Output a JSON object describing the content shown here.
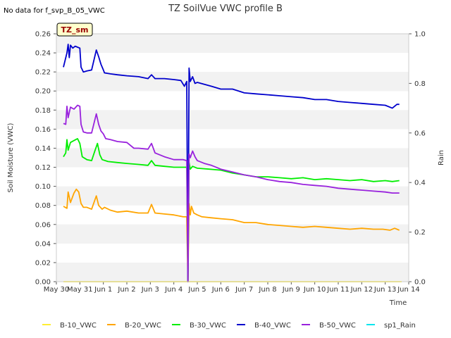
{
  "chart_data": {
    "type": "line",
    "title": "TZ SoilVue VWC profile B",
    "note": "No data for f_svp_B_05_VWC",
    "badge": "TZ_sm",
    "xlabel": "Time",
    "ylabel": "Soil Moisture (VWC)",
    "y2label": "Rain",
    "xlim": [
      0,
      15
    ],
    "ylim": [
      0,
      0.26
    ],
    "y2lim": [
      0,
      1.0
    ],
    "x_ticks": [
      {
        "x": 0,
        "label": "May 30"
      },
      {
        "x": 1,
        "label": "May 31"
      },
      {
        "x": 2,
        "label": "Jun 1"
      },
      {
        "x": 3,
        "label": "Jun 2"
      },
      {
        "x": 4,
        "label": "Jun 3"
      },
      {
        "x": 5,
        "label": "Jun 4"
      },
      {
        "x": 6,
        "label": "Jun 5"
      },
      {
        "x": 7,
        "label": "Jun 6"
      },
      {
        "x": 8,
        "label": "Jun 7"
      },
      {
        "x": 9,
        "label": "Jun 8"
      },
      {
        "x": 10,
        "label": "Jun 9"
      },
      {
        "x": 11,
        "label": "Jun 10"
      },
      {
        "x": 12,
        "label": "Jun 11"
      },
      {
        "x": 13,
        "label": "Jun 12"
      },
      {
        "x": 14,
        "label": "Jun 13"
      },
      {
        "x": 15,
        "label": "Jun 14"
      }
    ],
    "y_ticks": [
      "0.00",
      "0.02",
      "0.04",
      "0.06",
      "0.08",
      "0.10",
      "0.12",
      "0.14",
      "0.16",
      "0.18",
      "0.20",
      "0.22",
      "0.24",
      "0.26"
    ],
    "y2_ticks": [
      "0.0",
      "0.2",
      "0.4",
      "0.6",
      "0.8",
      "1.0"
    ],
    "grid": "horizontal bands",
    "legend_position": "bottom",
    "series": [
      {
        "name": "B-10_VWC",
        "color": "#ffee33",
        "x": [
          0.3,
          14.7
        ],
        "y": [
          0.0,
          0.0
        ]
      },
      {
        "name": "B-20_VWC",
        "color": "#ffa500",
        "x": [
          0.3,
          0.45,
          0.5,
          0.6,
          0.75,
          0.85,
          0.95,
          1.05,
          1.15,
          1.3,
          1.5,
          1.7,
          1.8,
          1.95,
          2.05,
          2.3,
          2.6,
          3.0,
          3.5,
          3.9,
          4.05,
          4.2,
          4.6,
          5.0,
          5.4,
          5.55,
          5.6,
          5.65,
          5.7,
          5.75,
          5.85,
          6.0,
          6.2,
          6.6,
          7.0,
          7.5,
          8.0,
          8.5,
          9.0,
          9.5,
          10.0,
          10.5,
          11.0,
          11.5,
          12.0,
          12.5,
          13.0,
          13.5,
          13.9,
          14.2,
          14.4,
          14.5,
          14.6
        ],
        "y": [
          0.079,
          0.077,
          0.094,
          0.083,
          0.093,
          0.097,
          0.094,
          0.082,
          0.078,
          0.078,
          0.076,
          0.09,
          0.08,
          0.076,
          0.078,
          0.075,
          0.073,
          0.074,
          0.072,
          0.072,
          0.081,
          0.072,
          0.071,
          0.07,
          0.068,
          0.068,
          0.0,
          0.082,
          0.07,
          0.079,
          0.072,
          0.07,
          0.068,
          0.067,
          0.066,
          0.065,
          0.062,
          0.062,
          0.06,
          0.059,
          0.058,
          0.057,
          0.058,
          0.057,
          0.056,
          0.055,
          0.056,
          0.055,
          0.055,
          0.054,
          0.056,
          0.055,
          0.054
        ]
      },
      {
        "name": "B-30_VWC",
        "color": "#00ee00",
        "x": [
          0.3,
          0.4,
          0.45,
          0.5,
          0.6,
          0.75,
          0.9,
          1.0,
          1.1,
          1.3,
          1.5,
          1.65,
          1.75,
          1.85,
          1.95,
          2.2,
          2.6,
          3.0,
          3.5,
          3.9,
          4.05,
          4.2,
          4.6,
          5.0,
          5.4,
          5.55,
          5.6,
          5.65,
          5.7,
          5.8,
          6.0,
          6.5,
          7.0,
          7.5,
          8.0,
          8.5,
          9.0,
          9.5,
          10.0,
          10.5,
          11.0,
          11.5,
          12.0,
          12.5,
          13.0,
          13.5,
          14.0,
          14.3,
          14.6
        ],
        "y": [
          0.131,
          0.135,
          0.149,
          0.138,
          0.146,
          0.148,
          0.15,
          0.145,
          0.131,
          0.128,
          0.127,
          0.138,
          0.145,
          0.133,
          0.128,
          0.126,
          0.125,
          0.124,
          0.123,
          0.122,
          0.127,
          0.122,
          0.121,
          0.12,
          0.12,
          0.12,
          0.0,
          0.125,
          0.118,
          0.121,
          0.119,
          0.118,
          0.117,
          0.114,
          0.112,
          0.11,
          0.11,
          0.109,
          0.108,
          0.109,
          0.107,
          0.108,
          0.107,
          0.106,
          0.107,
          0.105,
          0.106,
          0.105,
          0.106
        ]
      },
      {
        "name": "B-40_VWC",
        "color": "#0000cc",
        "x": [
          0.3,
          0.45,
          0.5,
          0.55,
          0.6,
          0.7,
          0.8,
          0.9,
          1.0,
          1.05,
          1.15,
          1.3,
          1.5,
          1.7,
          1.8,
          1.9,
          2.0,
          2.05,
          2.3,
          2.6,
          3.0,
          3.5,
          3.9,
          4.05,
          4.2,
          4.6,
          5.0,
          5.3,
          5.45,
          5.55,
          5.6,
          5.65,
          5.7,
          5.8,
          5.9,
          6.0,
          6.3,
          6.6,
          7.0,
          7.5,
          8.0,
          8.5,
          9.0,
          9.5,
          10.0,
          10.5,
          11.0,
          11.5,
          12.0,
          12.5,
          13.0,
          13.5,
          14.0,
          14.3,
          14.5,
          14.6
        ],
        "y": [
          0.225,
          0.24,
          0.249,
          0.235,
          0.248,
          0.245,
          0.247,
          0.246,
          0.245,
          0.225,
          0.22,
          0.221,
          0.222,
          0.243,
          0.236,
          0.228,
          0.222,
          0.219,
          0.218,
          0.217,
          0.216,
          0.215,
          0.213,
          0.217,
          0.213,
          0.213,
          0.212,
          0.211,
          0.205,
          0.21,
          0.0,
          0.224,
          0.21,
          0.215,
          0.208,
          0.209,
          0.207,
          0.205,
          0.202,
          0.202,
          0.198,
          0.197,
          0.196,
          0.195,
          0.194,
          0.193,
          0.191,
          0.191,
          0.189,
          0.188,
          0.187,
          0.186,
          0.185,
          0.182,
          0.186,
          0.186
        ]
      },
      {
        "name": "B-50_VWC",
        "color": "#9922dd",
        "x": [
          0.3,
          0.4,
          0.45,
          0.5,
          0.6,
          0.75,
          0.9,
          1.0,
          1.05,
          1.15,
          1.3,
          1.5,
          1.7,
          1.8,
          1.9,
          2.0,
          2.1,
          2.3,
          2.6,
          3.0,
          3.3,
          3.5,
          3.9,
          4.05,
          4.2,
          4.6,
          5.0,
          5.4,
          5.55,
          5.6,
          5.65,
          5.7,
          5.8,
          5.9,
          6.0,
          6.3,
          6.6,
          7.0,
          7.5,
          8.0,
          8.5,
          9.0,
          9.5,
          10.0,
          10.5,
          11.0,
          11.5,
          12.0,
          12.5,
          13.0,
          13.5,
          14.0,
          14.3,
          14.6
        ],
        "y": [
          0.166,
          0.165,
          0.184,
          0.172,
          0.183,
          0.181,
          0.185,
          0.184,
          0.165,
          0.157,
          0.156,
          0.156,
          0.176,
          0.165,
          0.158,
          0.155,
          0.15,
          0.149,
          0.147,
          0.146,
          0.14,
          0.14,
          0.139,
          0.145,
          0.135,
          0.131,
          0.128,
          0.128,
          0.127,
          0.0,
          0.134,
          0.13,
          0.137,
          0.131,
          0.127,
          0.124,
          0.122,
          0.118,
          0.115,
          0.112,
          0.11,
          0.107,
          0.105,
          0.104,
          0.102,
          0.101,
          0.1,
          0.098,
          0.097,
          0.096,
          0.095,
          0.094,
          0.093,
          0.093
        ]
      },
      {
        "name": "sp1_Rain",
        "color": "#00e5ee",
        "x": [],
        "y": []
      }
    ]
  }
}
